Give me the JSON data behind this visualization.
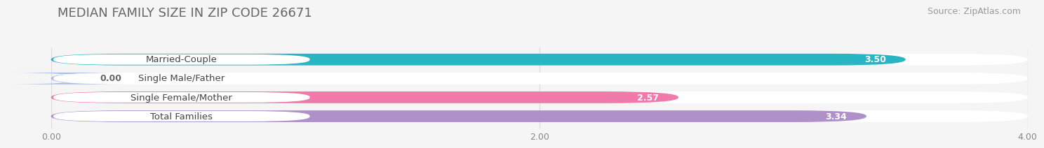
{
  "title": "MEDIAN FAMILY SIZE IN ZIP CODE 26671",
  "source": "Source: ZipAtlas.com",
  "categories": [
    "Married-Couple",
    "Single Male/Father",
    "Single Female/Mother",
    "Total Families"
  ],
  "values": [
    3.5,
    0.0,
    2.57,
    3.34
  ],
  "bar_colors": [
    "#29b5c3",
    "#a8bce8",
    "#f07aaa",
    "#b090c8"
  ],
  "xlim": [
    0,
    4.0
  ],
  "xticks": [
    0.0,
    2.0,
    4.0
  ],
  "xtick_labels": [
    "0.00",
    "2.00",
    "4.00"
  ],
  "bar_height": 0.62,
  "value_label_color": "#ffffff",
  "title_fontsize": 13,
  "source_fontsize": 9,
  "label_fontsize": 9.5,
  "value_fontsize": 9,
  "background_color": "#f5f5f5",
  "bar_bg_color": "#e8e8e8"
}
